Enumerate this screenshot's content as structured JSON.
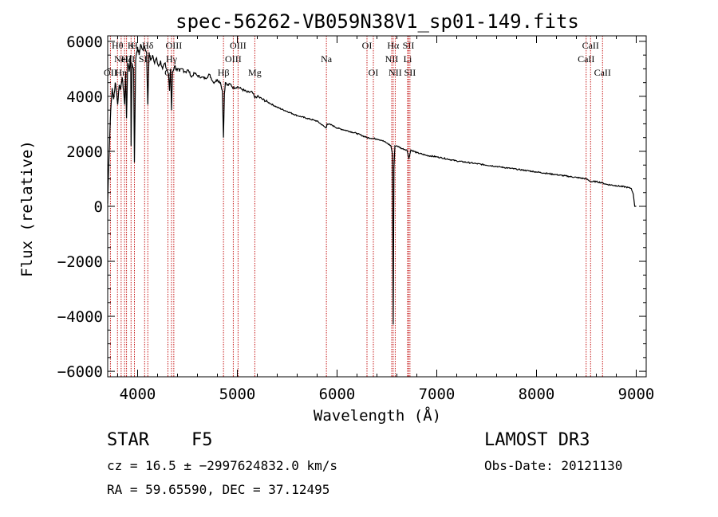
{
  "chart_data": {
    "type": "line",
    "title": "spec-56262-VB059N38V1_sp01-149.fits",
    "xlabel": "Wavelength (Å)",
    "ylabel": "Flux (relative)",
    "xlim": [
      3700,
      9100
    ],
    "ylim": [
      -6200,
      6200
    ],
    "x_ticks": [
      4000,
      5000,
      6000,
      7000,
      8000,
      9000
    ],
    "y_ticks": [
      -6000,
      -4000,
      -2000,
      0,
      2000,
      4000,
      6000
    ],
    "grid": false,
    "series": [
      {
        "name": "spectrum",
        "x": [
          3700,
          3710,
          3730,
          3745,
          3760,
          3775,
          3790,
          3800,
          3815,
          3830,
          3845,
          3860,
          3870,
          3880,
          3889,
          3900,
          3915,
          3930,
          3934,
          3945,
          3960,
          3968,
          3980,
          3990,
          4000,
          4015,
          4030,
          4050,
          4070,
          4090,
          4102,
          4115,
          4130,
          4150,
          4170,
          4190,
          4210,
          4230,
          4250,
          4270,
          4290,
          4310,
          4320,
          4330,
          4340,
          4350,
          4370,
          4390,
          4420,
          4450,
          4480,
          4510,
          4540,
          4570,
          4600,
          4640,
          4680,
          4720,
          4760,
          4800,
          4830,
          4850,
          4861,
          4870,
          4880,
          4900,
          4930,
          4960,
          5000,
          5050,
          5100,
          5150,
          5175,
          5200,
          5250,
          5300,
          5400,
          5500,
          5600,
          5700,
          5800,
          5890,
          5900,
          5950,
          6000,
          6100,
          6200,
          6300,
          6400,
          6450,
          6500,
          6540,
          6555,
          6563,
          6570,
          6580,
          6600,
          6650,
          6700,
          6720,
          6740,
          6800,
          6900,
          7000,
          7200,
          7400,
          7600,
          7800,
          8000,
          8200,
          8400,
          8500,
          8542,
          8600,
          8662,
          8700,
          8800,
          8900,
          8950,
          8970,
          8985,
          9000
        ],
        "y": [
          100,
          1500,
          3500,
          4300,
          3900,
          4500,
          4100,
          3700,
          4400,
          4300,
          4700,
          4200,
          3700,
          4900,
          3200,
          5200,
          4900,
          5500,
          2200,
          5200,
          5000,
          1600,
          5300,
          5600,
          5800,
          5500,
          5900,
          5700,
          5800,
          5600,
          3700,
          5600,
          5300,
          5500,
          5200,
          5400,
          5100,
          5300,
          5000,
          5200,
          5000,
          4800,
          4200,
          5000,
          3500,
          4900,
          5100,
          5000,
          4900,
          5000,
          4900,
          4950,
          4700,
          4850,
          4750,
          4700,
          4650,
          4800,
          4500,
          4600,
          4500,
          4200,
          2500,
          4100,
          4500,
          4400,
          4450,
          4300,
          4350,
          4250,
          4150,
          4150,
          3950,
          4000,
          3900,
          3800,
          3600,
          3450,
          3300,
          3200,
          3100,
          2850,
          3000,
          2950,
          2850,
          2750,
          2650,
          2500,
          2450,
          2400,
          2300,
          2200,
          1900,
          -4300,
          1400,
          2200,
          2200,
          2100,
          2050,
          1750,
          2050,
          1950,
          1850,
          1800,
          1650,
          1550,
          1450,
          1350,
          1250,
          1150,
          1050,
          1000,
          900,
          900,
          850,
          800,
          750,
          700,
          650,
          450,
          0,
          0
        ]
      }
    ],
    "lines": [
      {
        "wl": 3727,
        "label": "OII",
        "row": 2
      },
      {
        "wl": 3798,
        "label": "Hθ",
        "row": 0
      },
      {
        "wl": 3835,
        "label": "Hη",
        "row": 2
      },
      {
        "wl": 3869,
        "label": "NeIII",
        "row": 1
      },
      {
        "wl": 3889,
        "label": "Hζ",
        "row": 1
      },
      {
        "wl": 3934,
        "label": "K",
        "row": 0
      },
      {
        "wl": 3968,
        "label": "H",
        "row": 0
      },
      {
        "wl": 4070,
        "label": "SII",
        "row": 1
      },
      {
        "wl": 4102,
        "label": "Hδ",
        "row": 0
      },
      {
        "wl": 4304,
        "label": "G",
        "row": 2
      },
      {
        "wl": 4340,
        "label": "Hγ",
        "row": 1
      },
      {
        "wl": 4363,
        "label": "OIII",
        "row": 0
      },
      {
        "wl": 4861,
        "label": "Hβ",
        "row": 2
      },
      {
        "wl": 4959,
        "label": "OIII",
        "row": 1
      },
      {
        "wl": 5007,
        "label": "OIII",
        "row": 0
      },
      {
        "wl": 5175,
        "label": "Mg",
        "row": 2
      },
      {
        "wl": 5893,
        "label": "Na",
        "row": 1
      },
      {
        "wl": 6300,
        "label": "OI",
        "row": 0
      },
      {
        "wl": 6364,
        "label": "OI",
        "row": 2
      },
      {
        "wl": 6548,
        "label": "NII",
        "row": 1
      },
      {
        "wl": 6563,
        "label": "Hα",
        "row": 0
      },
      {
        "wl": 6583,
        "label": "NII",
        "row": 2
      },
      {
        "wl": 6708,
        "label": "Li",
        "row": 1
      },
      {
        "wl": 6716,
        "label": "SII",
        "row": 0
      },
      {
        "wl": 6731,
        "label": "SII",
        "row": 2
      },
      {
        "wl": 8498,
        "label": "CaII",
        "row": 1
      },
      {
        "wl": 8542,
        "label": "CaII",
        "row": 0
      },
      {
        "wl": 8662,
        "label": "CaII",
        "row": 2
      }
    ]
  },
  "info": {
    "object_type": "STAR",
    "subclass": "F5",
    "survey": "LAMOST DR3",
    "redshift": "cz = 16.5 ± −2997624832.0 km/s",
    "obs_date": "Obs-Date: 20121130",
    "coords": "RA =  59.65590, DEC =  37.12495"
  }
}
